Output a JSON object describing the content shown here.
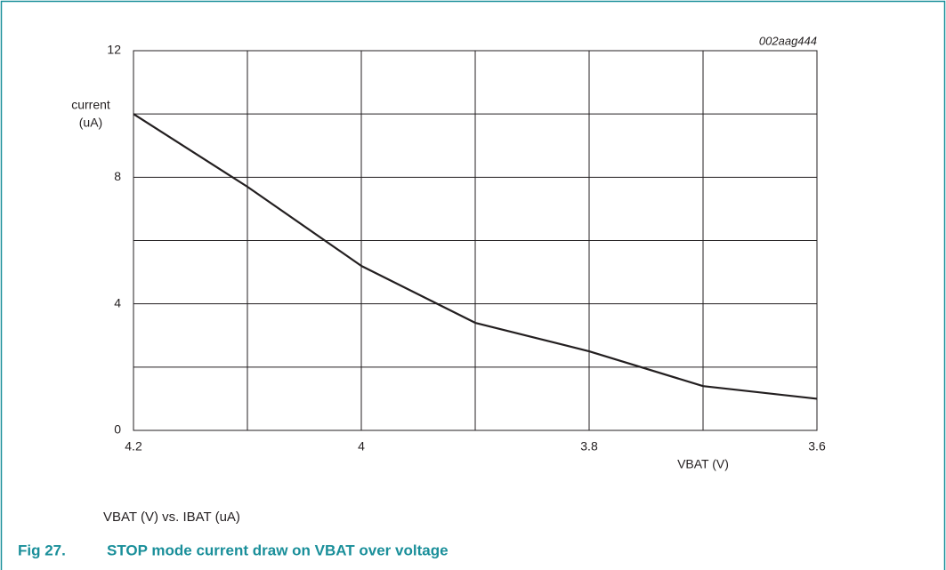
{
  "chart_data": {
    "type": "line",
    "figure_label": "Fig 27.",
    "title": "STOP mode current draw on VBAT over voltage",
    "subtitle": "VBAT (V) vs. IBAT (uA)",
    "code": "002aag444",
    "ylabel": [
      "current",
      "(uA)"
    ],
    "xlabel": "VBAT (V)",
    "x": [
      4.2,
      4.1,
      4.0,
      3.9,
      3.8,
      3.7,
      3.6
    ],
    "values": [
      10,
      7.7,
      5.2,
      3.4,
      2.5,
      1.4,
      1.0
    ],
    "color": "#231f20",
    "xlim": [
      4.2,
      3.6
    ],
    "ylim": [
      0,
      12
    ],
    "xticks": [
      4.2,
      4,
      3.8,
      3.6
    ],
    "xminorticks": [
      4.1,
      3.9,
      3.7
    ],
    "yticks": [
      0,
      4,
      8,
      12
    ],
    "yminorticks": [
      2,
      6,
      10
    ],
    "grid": true
  }
}
